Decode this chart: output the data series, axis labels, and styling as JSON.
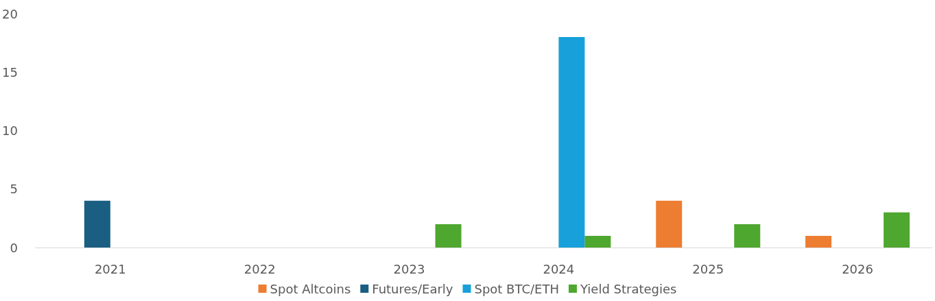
{
  "chart_data": {
    "type": "bar",
    "categories": [
      "2021",
      "2022",
      "2023",
      "2024",
      "2025",
      "2026"
    ],
    "series": [
      {
        "name": "Spot Altcoins",
        "color": "#ed7d31",
        "values": [
          null,
          null,
          null,
          null,
          4,
          1
        ]
      },
      {
        "name": "Futures/Early",
        "color": "#1a5e82",
        "values": [
          4,
          null,
          null,
          null,
          null,
          null
        ]
      },
      {
        "name": "Spot BTC/ETH",
        "color": "#17a0d9",
        "values": [
          null,
          null,
          null,
          18,
          null,
          null
        ]
      },
      {
        "name": "Yield Strategies",
        "color": "#4ea72e",
        "values": [
          null,
          null,
          2,
          1,
          2,
          3
        ]
      }
    ],
    "ylim": [
      0,
      20
    ],
    "yticks": [
      0,
      5,
      10,
      15,
      20
    ],
    "grid": false,
    "legend": "bottom"
  }
}
